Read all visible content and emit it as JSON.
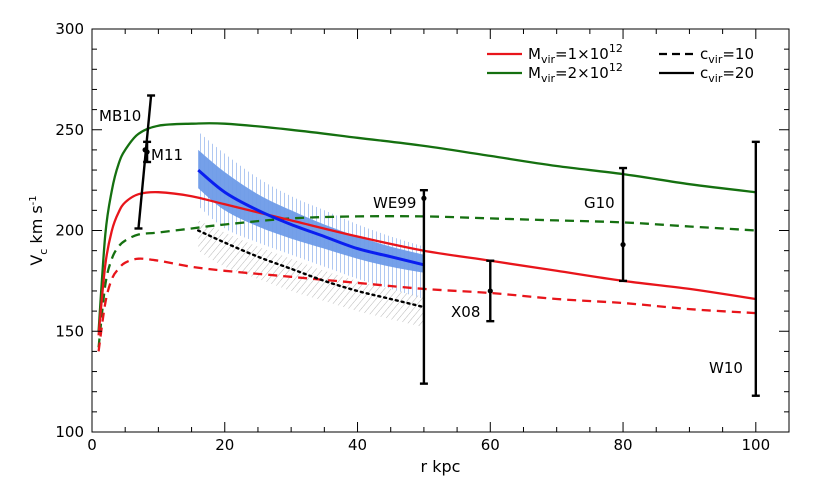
{
  "chart_data": {
    "type": "line",
    "xlabel": "r kpc",
    "ylabel": "V",
    "ylabel_sub": "c",
    "ylabel_unit": "km s",
    "ylabel_sup": "-1",
    "xlim": [
      0,
      105
    ],
    "ylim": [
      100,
      300
    ],
    "xticks": [
      0,
      20,
      40,
      60,
      80,
      100
    ],
    "yticks": [
      100,
      150,
      200,
      250,
      300
    ],
    "grid": false,
    "legend_position": "top-right",
    "legend": {
      "col1": [
        {
          "color": "#e8151b",
          "style": "solid",
          "base": "M",
          "sub": "vir",
          "mid": "=1×10",
          "sup": "12"
        },
        {
          "color": "#157010",
          "style": "solid",
          "base": "M",
          "sub": "vir",
          "mid": "=2×10",
          "sup": "12"
        }
      ],
      "col2": [
        {
          "color": "#000000",
          "style": "dashed",
          "base": "c",
          "sub": "vir",
          "mid": "=10",
          "sup": ""
        },
        {
          "color": "#000000",
          "style": "solid",
          "base": "c",
          "sub": "vir",
          "mid": "=20",
          "sup": ""
        }
      ]
    },
    "series": [
      {
        "color": "#157010",
        "style": "solid",
        "x": [
          1,
          2,
          3,
          4,
          5,
          7,
          10,
          15,
          20,
          30,
          40,
          50,
          60,
          70,
          80,
          90,
          100
        ],
        "y": [
          150,
          198,
          220,
          233,
          240,
          248,
          252,
          253,
          253,
          250,
          246,
          242,
          237,
          232,
          228,
          223,
          219
        ]
      },
      {
        "color": "#157010",
        "style": "dashed",
        "x": [
          1,
          2,
          3,
          4,
          5,
          7,
          10,
          15,
          20,
          30,
          40,
          50,
          60,
          70,
          80,
          90,
          100
        ],
        "y": [
          142,
          173,
          186,
          192,
          195,
          198,
          199,
          201,
          203,
          206,
          207,
          207,
          206,
          205,
          204,
          202,
          200
        ]
      },
      {
        "color": "#e8151b",
        "style": "solid",
        "x": [
          1,
          2,
          3,
          4,
          5,
          7,
          10,
          15,
          20,
          30,
          40,
          50,
          60,
          70,
          80,
          90,
          100
        ],
        "y": [
          148,
          183,
          200,
          209,
          214,
          218,
          219,
          217,
          213,
          205,
          197,
          190,
          185,
          180,
          175,
          171,
          166
        ]
      },
      {
        "color": "#e8151b",
        "style": "dashed",
        "x": [
          1,
          2,
          3,
          4,
          5,
          7,
          10,
          15,
          20,
          30,
          40,
          50,
          60,
          70,
          80,
          90,
          100
        ],
        "y": [
          140,
          164,
          176,
          181,
          184,
          186,
          185,
          182,
          180,
          177,
          174,
          171,
          169,
          166,
          164,
          161,
          159
        ]
      },
      {
        "color": "#0a1ef0",
        "style": "solid",
        "width": 3,
        "x": [
          16,
          20,
          25,
          30,
          35,
          40,
          45,
          50
        ],
        "y": [
          230,
          219,
          210,
          203,
          197,
          191,
          187,
          183
        ]
      },
      {
        "color": "#000000",
        "style": "dotted",
        "x": [
          16,
          20,
          25,
          30,
          35,
          40,
          45,
          50
        ],
        "y": [
          200,
          194,
          187,
          181,
          175,
          170,
          166,
          162
        ]
      }
    ],
    "bands": [
      {
        "fill": "#6e9be8",
        "x": [
          16,
          20,
          25,
          30,
          35,
          40,
          45,
          50
        ],
        "upper": [
          240,
          229,
          218,
          210,
          203,
          197,
          192,
          188
        ],
        "lower": [
          221,
          210,
          202,
          196,
          191,
          186,
          182,
          179
        ]
      },
      {
        "hatch": "#6e9be8",
        "x": [
          16,
          20,
          25,
          30,
          35,
          40,
          45,
          50
        ],
        "upper": [
          249,
          238,
          226,
          217,
          210,
          203,
          197,
          192
        ],
        "lower": [
          212,
          201,
          194,
          188,
          182,
          176,
          171,
          166
        ]
      },
      {
        "hatch": "#b8b8b8",
        "x": [
          16,
          20,
          25,
          30,
          35,
          40,
          45,
          50
        ],
        "upper": [
          205,
          199,
          192,
          186,
          180,
          175,
          171,
          167
        ],
        "lower": [
          190,
          182,
          176,
          170,
          165,
          160,
          156,
          152
        ]
      }
    ],
    "data_points": [
      {
        "label": "MB10",
        "x": 8.0,
        "y": 240,
        "lo": 201,
        "hi": 267
      },
      {
        "label": "M11",
        "x": 8.3,
        "y": 239,
        "lo": 234,
        "hi": 244
      },
      {
        "label": "WE99",
        "x": 50,
        "y": 216,
        "lo": 124,
        "hi": 220
      },
      {
        "label": "X08",
        "x": 60,
        "y": 170,
        "lo": 155,
        "hi": 185
      },
      {
        "label": "G10",
        "x": 80,
        "y": 193,
        "lo": 175,
        "hi": 231
      },
      {
        "label": "W10",
        "x": 100,
        "y": null,
        "lo": 118,
        "hi": 244
      }
    ]
  }
}
